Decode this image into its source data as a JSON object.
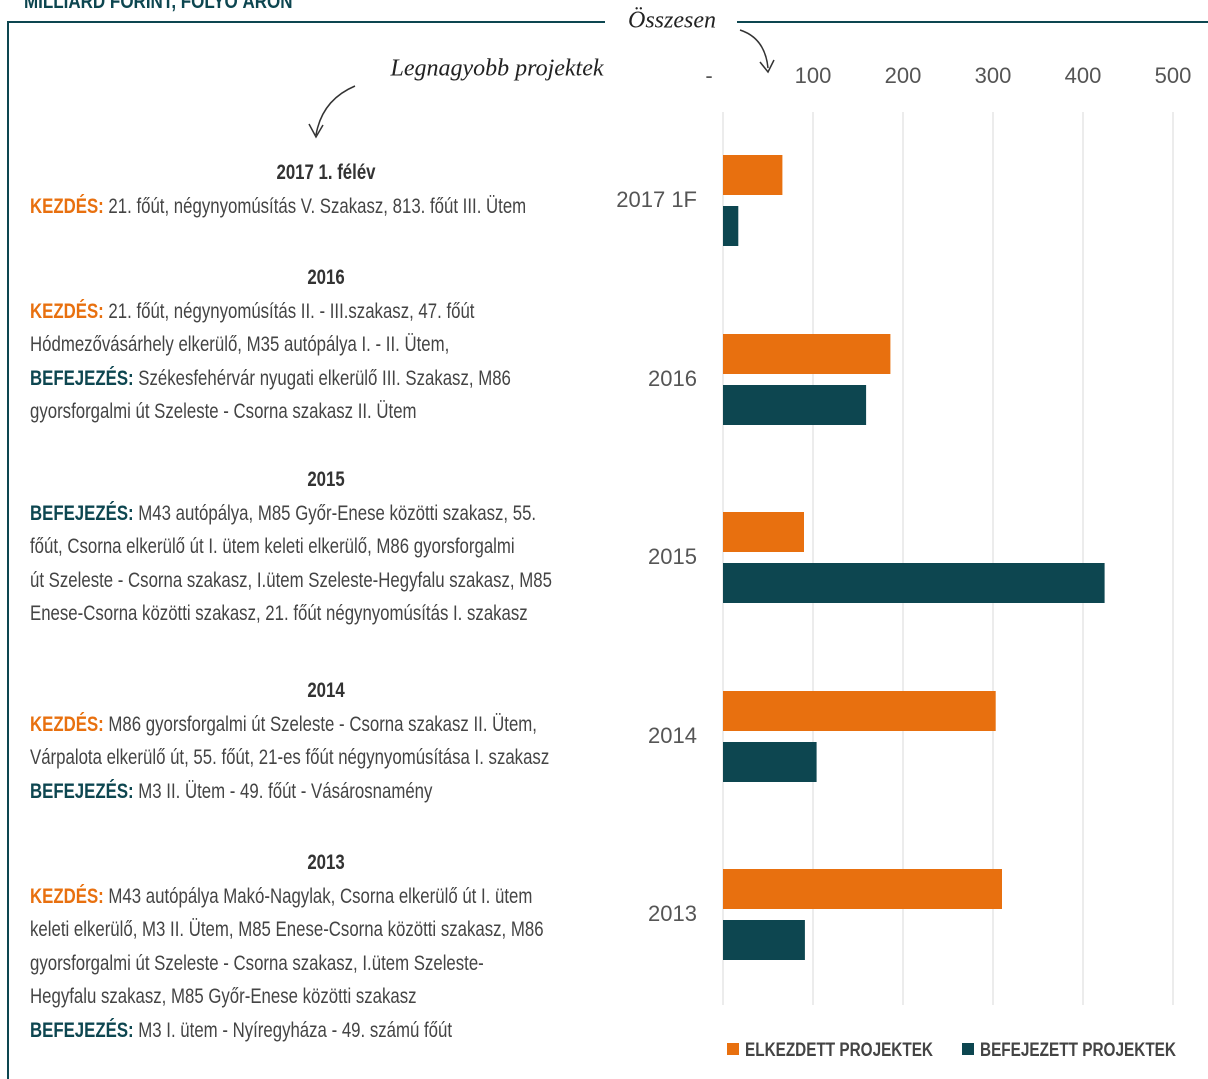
{
  "header": {
    "title": "MILLIÁRD FORINT, FOLYÓ ÁRON"
  },
  "projects_note": "Legnagyobb projektek",
  "projects": [
    {
      "heading": "2017 1. félév",
      "lines": [
        {
          "label": "KEZDÉS:",
          "kind": "start",
          "text": "21. főút, négynyomúsítás V. Szakasz, 813. főút III. Ütem"
        }
      ]
    },
    {
      "heading": "2016",
      "lines": [
        {
          "label": "KEZDÉS:",
          "kind": "start",
          "text": "21. főút, négynyomúsítás II. - III.szakasz, 47. főút"
        },
        {
          "text": "Hódmezővásárhely elkerülő, M35 autópálya I. - II. Ütem,"
        },
        {
          "label": "BEFEJEZÉS:",
          "kind": "end",
          "text": "Székesfehérvár nyugati elkerülő III. Szakasz,  M86"
        },
        {
          "text": "gyorsforgalmi út Szeleste - Csorna szakasz II. Ütem"
        }
      ]
    },
    {
      "heading": "2015",
      "lines": [
        {
          "label": "BEFEJEZÉS:",
          "kind": "end",
          "text": "M43 autópálya, M85 Győr-Enese közötti szakasz, 55."
        },
        {
          "text": "főút,  Csorna elkerülő út I. ütem keleti elkerülő, M86 gyorsforgalmi"
        },
        {
          "text": "út Szeleste - Csorna szakasz, I.ütem Szeleste-Hegyfalu szakasz, M85"
        },
        {
          "text": "Enese-Csorna közötti szakasz, 21. főút négynyomúsítás I. szakasz"
        }
      ]
    },
    {
      "heading": "2014",
      "lines": [
        {
          "label": "KEZDÉS:",
          "kind": "start",
          "text": "M86 gyorsforgalmi út Szeleste - Csorna szakasz II. Ütem,"
        },
        {
          "text": "Várpalota elkerülő út, 55. főút, 21-es főút négynyomúsítása I. szakasz"
        },
        {
          "label": "BEFEJEZÉS:",
          "kind": "end",
          "text": "M3 II. Ütem - 49. főút - Vásárosnamény"
        }
      ]
    },
    {
      "heading": "2013",
      "lines": [
        {
          "label": "KEZDÉS:",
          "kind": "start",
          "text": "M43 autópálya Makó-Nagylak, Csorna elkerülő út I. ütem"
        },
        {
          "text": "keleti elkerülő, M3 II. Ütem, M85 Enese-Csorna közötti szakasz, M86"
        },
        {
          "text": "gyorsforgalmi út Szeleste - Csorna szakasz, I.ütem Szeleste-"
        },
        {
          "text": "Hegyfalu szakasz, M85 Győr-Enese közötti szakasz"
        },
        {
          "label": "BEFEJEZÉS:",
          "kind": "end",
          "text": "M3 I. ütem - Nyíregyháza - 49. számú főút"
        }
      ]
    }
  ],
  "chart_data": {
    "type": "barh",
    "annotation": "Összesen",
    "categories": [
      "2017 1F",
      "2016",
      "2015",
      "2014",
      "2013"
    ],
    "series": [
      {
        "name": "ELKEZDETT PROJEKTEK",
        "color": "#e8700f",
        "values": [
          66,
          186,
          90,
          303,
          310
        ]
      },
      {
        "name": "BEFEJEZETT PROJEKTEK",
        "color": "#0d4650",
        "values": [
          17,
          159,
          424,
          104,
          91
        ]
      }
    ],
    "xlim": [
      0,
      500
    ],
    "xticks": [
      {
        "value": 0,
        "label": "-"
      },
      100,
      200,
      300,
      400,
      500
    ],
    "grid": true,
    "legend": "bottom"
  }
}
